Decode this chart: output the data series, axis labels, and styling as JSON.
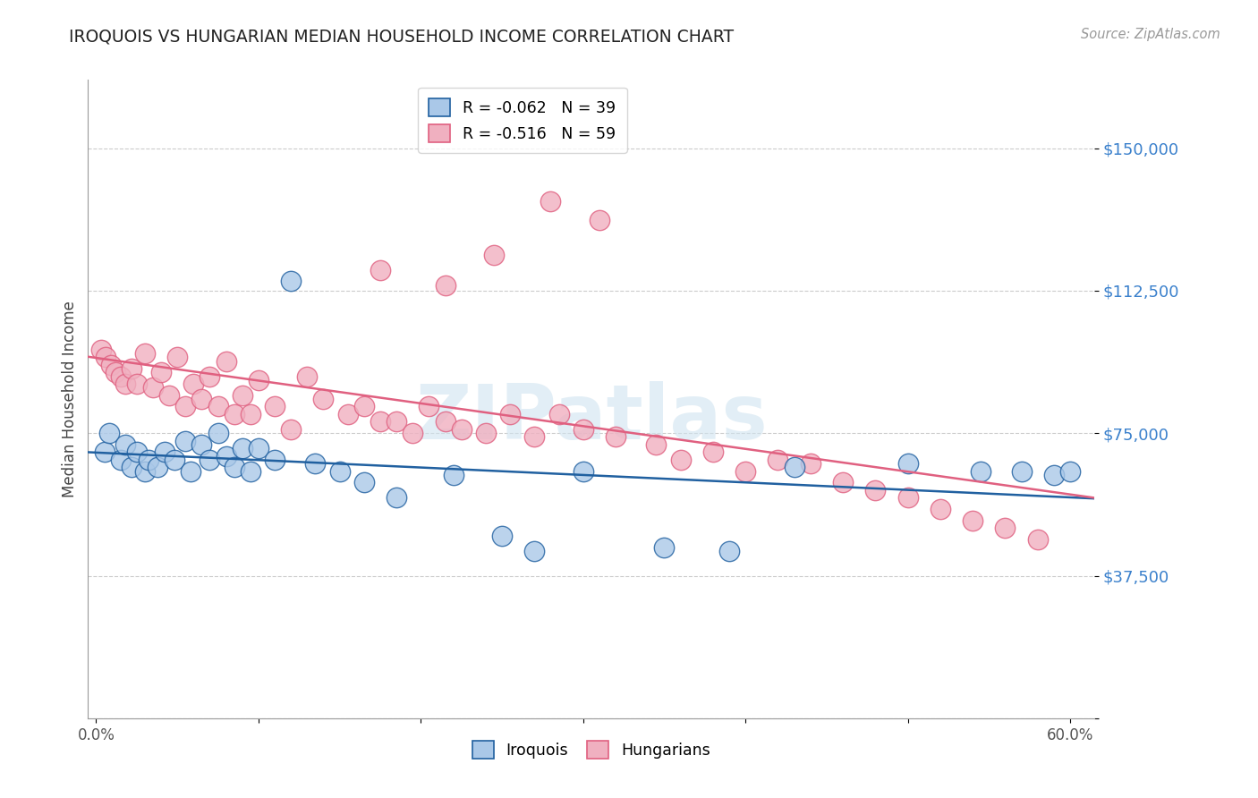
{
  "title": "IROQUOIS VS HUNGARIAN MEDIAN HOUSEHOLD INCOME CORRELATION CHART",
  "source": "Source: ZipAtlas.com",
  "ylabel": "Median Household Income",
  "yticks": [
    0,
    37500,
    75000,
    112500,
    150000
  ],
  "ytick_labels": [
    "",
    "$37,500",
    "$75,000",
    "$112,500",
    "$150,000"
  ],
  "xlim": [
    -0.005,
    0.615
  ],
  "ylim": [
    15000,
    168000
  ],
  "watermark": "ZIPatlas",
  "iroquois_color": "#aac8e8",
  "hungarians_color": "#f0b0c0",
  "iroquois_line_color": "#2060a0",
  "hungarians_line_color": "#e06080",
  "legend_iroquois_R": "R = -0.062",
  "legend_iroquois_N": "N = 39",
  "legend_hungarians_R": "R = -0.516",
  "legend_hungarians_N": "N = 59",
  "iroquois_x": [
    0.005,
    0.008,
    0.015,
    0.018,
    0.022,
    0.025,
    0.03,
    0.032,
    0.038,
    0.042,
    0.048,
    0.055,
    0.058,
    0.065,
    0.07,
    0.075,
    0.08,
    0.085,
    0.09,
    0.095,
    0.1,
    0.11,
    0.12,
    0.135,
    0.15,
    0.165,
    0.185,
    0.22,
    0.25,
    0.27,
    0.3,
    0.35,
    0.39,
    0.43,
    0.5,
    0.545,
    0.57,
    0.59,
    0.6
  ],
  "iroquois_y": [
    70000,
    75000,
    68000,
    72000,
    66000,
    70000,
    65000,
    68000,
    66000,
    70000,
    68000,
    73000,
    65000,
    72000,
    68000,
    75000,
    69000,
    66000,
    71000,
    65000,
    71000,
    68000,
    115000,
    67000,
    65000,
    62000,
    58000,
    64000,
    48000,
    44000,
    65000,
    45000,
    44000,
    66000,
    67000,
    65000,
    65000,
    64000,
    65000
  ],
  "hungarians_x": [
    0.003,
    0.006,
    0.009,
    0.012,
    0.015,
    0.018,
    0.022,
    0.025,
    0.03,
    0.035,
    0.04,
    0.045,
    0.05,
    0.055,
    0.06,
    0.065,
    0.07,
    0.075,
    0.08,
    0.085,
    0.09,
    0.095,
    0.1,
    0.11,
    0.12,
    0.13,
    0.14,
    0.155,
    0.165,
    0.175,
    0.185,
    0.195,
    0.205,
    0.215,
    0.225,
    0.24,
    0.255,
    0.27,
    0.285,
    0.3,
    0.32,
    0.345,
    0.36,
    0.38,
    0.4,
    0.42,
    0.44,
    0.46,
    0.48,
    0.5,
    0.52,
    0.54,
    0.56,
    0.58,
    0.28,
    0.31,
    0.245,
    0.175,
    0.215
  ],
  "hungarians_y": [
    97000,
    95000,
    93000,
    91000,
    90000,
    88000,
    92000,
    88000,
    96000,
    87000,
    91000,
    85000,
    95000,
    82000,
    88000,
    84000,
    90000,
    82000,
    94000,
    80000,
    85000,
    80000,
    89000,
    82000,
    76000,
    90000,
    84000,
    80000,
    82000,
    78000,
    78000,
    75000,
    82000,
    78000,
    76000,
    75000,
    80000,
    74000,
    80000,
    76000,
    74000,
    72000,
    68000,
    70000,
    65000,
    68000,
    67000,
    62000,
    60000,
    58000,
    55000,
    52000,
    50000,
    47000,
    136000,
    131000,
    122000,
    118000,
    114000
  ]
}
